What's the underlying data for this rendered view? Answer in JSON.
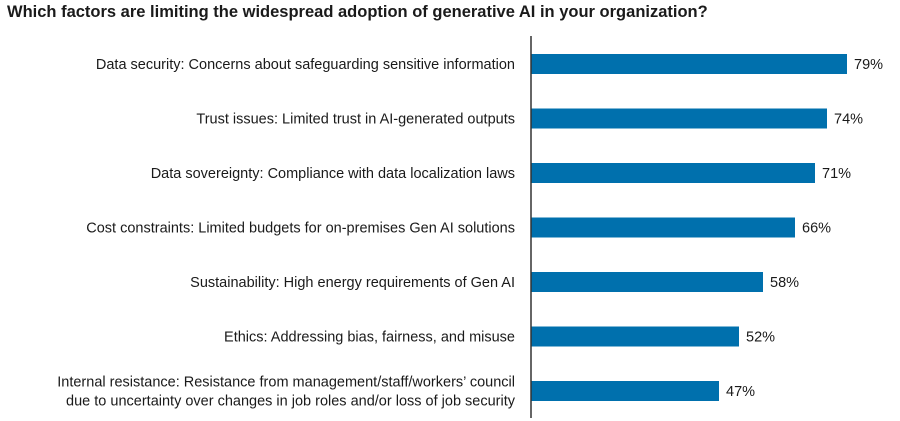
{
  "chart_data": {
    "type": "bar",
    "orientation": "horizontal",
    "title": "Which factors are limiting the widespread adoption of generative AI in your organization?",
    "categories": [
      [
        "Data security: Concerns about safeguarding sensitive information"
      ],
      [
        "Trust issues: Limited trust in AI-generated outputs"
      ],
      [
        "Data sovereignty: Compliance with data localization laws"
      ],
      [
        "Cost constraints: Limited budgets for on-premises Gen AI solutions"
      ],
      [
        "Sustainability: High energy requirements of Gen AI"
      ],
      [
        "Ethics: Addressing bias, fairness, and misuse"
      ],
      [
        "Internal resistance: Resistance from management/staff/workers’ council",
        "due to uncertainty over changes in job roles and/or loss of job security"
      ]
    ],
    "values": [
      79,
      74,
      71,
      66,
      58,
      52,
      47
    ],
    "value_labels": [
      "79%",
      "74%",
      "71%",
      "66%",
      "58%",
      "52%",
      "47%"
    ],
    "bar_color": "#0070AD",
    "axis_color": "#333333",
    "xlim": [
      0,
      100
    ],
    "grid": false,
    "legend": "none"
  }
}
